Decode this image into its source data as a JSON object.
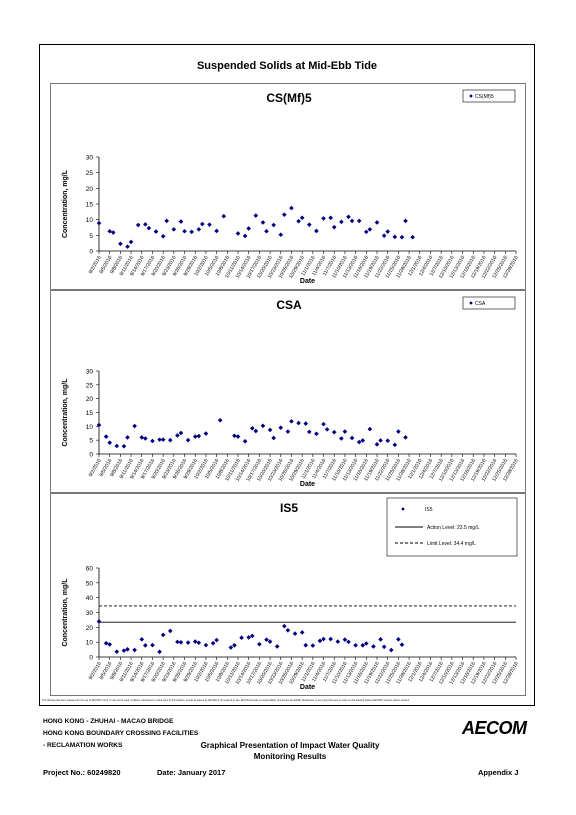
{
  "page": {
    "title": "Suspended Solids at Mid-Ebb Tide",
    "disclaimer": "This drawing has been prepared for the use of AECOM's client. It may not be used, modified, reproduced or relied upon by third parties, except as agreed by AECOM or as required by law. AECOM accepts no responsibility, and denies any liability whatsoever, to any party that uses or relies on this drawing without AECOM's express written consent.",
    "footer": {
      "line1": "HONG KONG - ZHUHAI - MACAO BRIDGE",
      "line2": "HONG KONG BOUNDARY CROSSING FACILITIES",
      "line3": "- RECLAMATION WORKS",
      "center_line1": "Graphical Presentation of Impact Water Quality",
      "center_line2": "Monitoring Results",
      "project": "Project No.: 60249820",
      "date": "Date: January 2017",
      "appendix": "Appendix J",
      "logo": "AECOM"
    }
  },
  "colors": {
    "series": "#000080",
    "action": "#000000",
    "limit": "#000000"
  },
  "chart_data": [
    {
      "type": "scatter",
      "title": "CS(Mf)5",
      "xlabel": "Date",
      "ylabel": "Concentration, mg/L",
      "ylim": [
        0,
        30
      ],
      "yticks": [
        0,
        5,
        10,
        15,
        20,
        25,
        30
      ],
      "grid": false,
      "legend_position": "top-right",
      "xticks": [
        "9/2/2016",
        "9/5/2016",
        "9/8/2016",
        "9/11/2016",
        "9/14/2016",
        "9/17/2016",
        "9/20/2016",
        "9/23/2016",
        "9/26/2016",
        "9/29/2016",
        "10/2/2016",
        "10/5/2016",
        "10/8/2016",
        "10/11/2016",
        "10/14/2016",
        "10/17/2016",
        "10/20/2016",
        "10/23/2016",
        "10/26/2016",
        "10/29/2016",
        "11/1/2016",
        "11/4/2016",
        "11/7/2016",
        "11/10/2016",
        "11/13/2016",
        "11/16/2016",
        "11/19/2016",
        "11/22/2016",
        "11/25/2016",
        "11/28/2016",
        "12/1/2016",
        "12/4/2016",
        "12/7/2016",
        "12/10/2016",
        "12/13/2016",
        "12/16/2016",
        "12/19/2016",
        "12/22/2016",
        "12/25/2016",
        "12/28/2016"
      ],
      "series": [
        {
          "name": "CS(Mf)5",
          "points": [
            [
              "2016-09-02",
              8.9
            ],
            [
              "2016-09-05",
              6.3
            ],
            [
              "2016-09-06",
              5.9
            ],
            [
              "2016-09-08",
              2.3
            ],
            [
              "2016-09-10",
              1.4
            ],
            [
              "2016-09-11",
              2.9
            ],
            [
              "2016-09-13",
              8.3
            ],
            [
              "2016-09-15",
              8.5
            ],
            [
              "2016-09-16",
              7.3
            ],
            [
              "2016-09-18",
              6.2
            ],
            [
              "2016-09-20",
              4.7
            ],
            [
              "2016-09-21",
              9.6
            ],
            [
              "2016-09-23",
              6.9
            ],
            [
              "2016-09-25",
              9.4
            ],
            [
              "2016-09-26",
              6.3
            ],
            [
              "2016-09-28",
              6.1
            ],
            [
              "2016-09-30",
              6.9
            ],
            [
              "2016-10-01",
              8.6
            ],
            [
              "2016-10-03",
              8.4
            ],
            [
              "2016-10-05",
              6.4
            ],
            [
              "2016-10-07",
              11.1
            ],
            [
              "2016-10-11",
              5.6
            ],
            [
              "2016-10-13",
              4.8
            ],
            [
              "2016-10-14",
              7.2
            ],
            [
              "2016-10-16",
              11.3
            ],
            [
              "2016-10-18",
              9.1
            ],
            [
              "2016-10-19",
              6.3
            ],
            [
              "2016-10-21",
              8.3
            ],
            [
              "2016-10-23",
              5.2
            ],
            [
              "2016-10-24",
              11.6
            ],
            [
              "2016-10-26",
              13.7
            ],
            [
              "2016-10-28",
              9.5
            ],
            [
              "2016-10-29",
              10.6
            ],
            [
              "2016-10-31",
              8.4
            ],
            [
              "2016-11-02",
              6.4
            ],
            [
              "2016-11-04",
              10.4
            ],
            [
              "2016-11-06",
              10.6
            ],
            [
              "2016-11-07",
              7.6
            ],
            [
              "2016-11-09",
              9.3
            ],
            [
              "2016-11-11",
              10.9
            ],
            [
              "2016-11-12",
              9.6
            ],
            [
              "2016-11-14",
              9.6
            ],
            [
              "2016-11-16",
              6.1
            ],
            [
              "2016-11-17",
              6.9
            ],
            [
              "2016-11-19",
              9.1
            ],
            [
              "2016-11-21",
              4.9
            ],
            [
              "2016-11-22",
              6.2
            ],
            [
              "2016-11-24",
              4.5
            ],
            [
              "2016-11-26",
              4.4
            ],
            [
              "2016-11-27",
              9.6
            ],
            [
              "2016-11-29",
              4.4
            ]
          ]
        }
      ]
    },
    {
      "type": "scatter",
      "title": "CSA",
      "xlabel": "Date",
      "ylabel": "Concentration, mg/L",
      "ylim": [
        0,
        30
      ],
      "yticks": [
        0,
        5,
        10,
        15,
        20,
        25,
        30
      ],
      "grid": false,
      "legend_position": "top-right",
      "xticks": [
        "9/2/2016",
        "9/5/2016",
        "9/8/2016",
        "9/11/2016",
        "9/14/2016",
        "9/17/2016",
        "9/20/2016",
        "9/23/2016",
        "9/26/2016",
        "9/29/2016",
        "10/2/2016",
        "10/5/2016",
        "10/8/2016",
        "10/11/2016",
        "10/14/2016",
        "10/17/2016",
        "10/20/2016",
        "10/23/2016",
        "10/26/2016",
        "10/29/2016",
        "11/1/2016",
        "11/4/2016",
        "11/7/2016",
        "11/10/2016",
        "11/13/2016",
        "11/16/2016",
        "11/19/2016",
        "11/22/2016",
        "11/25/2016",
        "11/28/2016",
        "12/1/2016",
        "12/4/2016",
        "12/7/2016",
        "12/10/2016",
        "12/13/2016",
        "12/16/2016",
        "12/19/2016",
        "12/22/2016",
        "12/25/2016",
        "12/28/2016"
      ],
      "series": [
        {
          "name": "CSA",
          "points": [
            [
              "2016-09-02",
              10.5
            ],
            [
              "2016-09-04",
              6.3
            ],
            [
              "2016-09-05",
              4.1
            ],
            [
              "2016-09-07",
              2.9
            ],
            [
              "2016-09-09",
              2.8
            ],
            [
              "2016-09-10",
              6.0
            ],
            [
              "2016-09-12",
              10.1
            ],
            [
              "2016-09-14",
              6.0
            ],
            [
              "2016-09-15",
              5.6
            ],
            [
              "2016-09-17",
              4.7
            ],
            [
              "2016-09-19",
              5.2
            ],
            [
              "2016-09-20",
              5.2
            ],
            [
              "2016-09-22",
              5.0
            ],
            [
              "2016-09-24",
              6.7
            ],
            [
              "2016-09-25",
              7.6
            ],
            [
              "2016-09-27",
              5.0
            ],
            [
              "2016-09-29",
              6.3
            ],
            [
              "2016-09-30",
              6.5
            ],
            [
              "2016-10-02",
              7.4
            ],
            [
              "2016-10-06",
              12.2
            ],
            [
              "2016-10-10",
              6.6
            ],
            [
              "2016-10-11",
              6.3
            ],
            [
              "2016-10-13",
              4.6
            ],
            [
              "2016-10-15",
              9.3
            ],
            [
              "2016-10-16",
              8.3
            ],
            [
              "2016-10-18",
              10.2
            ],
            [
              "2016-10-20",
              8.7
            ],
            [
              "2016-10-21",
              5.8
            ],
            [
              "2016-10-23",
              9.5
            ],
            [
              "2016-10-25",
              8.1
            ],
            [
              "2016-10-26",
              11.8
            ],
            [
              "2016-10-28",
              11.2
            ],
            [
              "2016-10-30",
              11.0
            ],
            [
              "2016-10-31",
              8.0
            ],
            [
              "2016-11-02",
              7.3
            ],
            [
              "2016-11-04",
              10.8
            ],
            [
              "2016-11-05",
              8.9
            ],
            [
              "2016-11-07",
              7.9
            ],
            [
              "2016-11-09",
              5.6
            ],
            [
              "2016-11-10",
              8.1
            ],
            [
              "2016-11-12",
              5.8
            ],
            [
              "2016-11-14",
              4.3
            ],
            [
              "2016-11-15",
              4.9
            ],
            [
              "2016-11-17",
              9.0
            ],
            [
              "2016-11-19",
              3.5
            ],
            [
              "2016-11-20",
              4.9
            ],
            [
              "2016-11-22",
              4.8
            ],
            [
              "2016-11-24",
              3.3
            ],
            [
              "2016-11-25",
              8.1
            ],
            [
              "2016-11-27",
              6.0
            ]
          ]
        }
      ]
    },
    {
      "type": "scatter",
      "title": "IS5",
      "xlabel": "Date",
      "ylabel": "Concentration, mg/L",
      "ylim": [
        0,
        60
      ],
      "yticks": [
        0,
        10,
        20,
        30,
        40,
        50,
        60
      ],
      "grid": false,
      "legend_position": "top-right",
      "xticks": [
        "9/2/2016",
        "9/5/2016",
        "9/8/2016",
        "9/11/2016",
        "9/14/2016",
        "9/17/2016",
        "9/20/2016",
        "9/23/2016",
        "9/26/2016",
        "9/29/2016",
        "10/2/2016",
        "10/5/2016",
        "10/8/2016",
        "10/11/2016",
        "10/14/2016",
        "10/17/2016",
        "10/20/2016",
        "10/23/2016",
        "10/26/2016",
        "10/29/2016",
        "11/1/2016",
        "11/4/2016",
        "11/7/2016",
        "11/10/2016",
        "11/13/2016",
        "11/16/2016",
        "11/19/2016",
        "11/22/2016",
        "11/25/2016",
        "11/28/2016",
        "12/1/2016",
        "12/4/2016",
        "12/7/2016",
        "12/10/2016",
        "12/13/2016",
        "12/16/2016",
        "12/19/2016",
        "12/22/2016",
        "12/25/2016",
        "12/28/2016"
      ],
      "reference_lines": [
        {
          "name": "Action Level: 23.5 mg/L",
          "value": 23.5,
          "style": "solid"
        },
        {
          "name": "Limit Level: 34.4 mg/L",
          "value": 34.4,
          "style": "dashed"
        }
      ],
      "series": [
        {
          "name": "IS5",
          "points": [
            [
              "2016-09-02",
              24.0
            ],
            [
              "2016-09-04",
              9.3
            ],
            [
              "2016-09-05",
              8.5
            ],
            [
              "2016-09-07",
              3.6
            ],
            [
              "2016-09-09",
              4.3
            ],
            [
              "2016-09-10",
              5.2
            ],
            [
              "2016-09-12",
              4.7
            ],
            [
              "2016-09-14",
              11.9
            ],
            [
              "2016-09-15",
              7.8
            ],
            [
              "2016-09-17",
              8.0
            ],
            [
              "2016-09-19",
              3.5
            ],
            [
              "2016-09-20",
              14.9
            ],
            [
              "2016-09-22",
              17.6
            ],
            [
              "2016-09-24",
              10.2
            ],
            [
              "2016-09-25",
              9.9
            ],
            [
              "2016-09-27",
              9.7
            ],
            [
              "2016-09-29",
              10.4
            ],
            [
              "2016-09-30",
              9.6
            ],
            [
              "2016-10-02",
              8.0
            ],
            [
              "2016-10-04",
              9.3
            ],
            [
              "2016-10-05",
              11.4
            ],
            [
              "2016-10-09",
              6.4
            ],
            [
              "2016-10-10",
              7.9
            ],
            [
              "2016-10-12",
              13.0
            ],
            [
              "2016-10-14",
              13.2
            ],
            [
              "2016-10-15",
              14.2
            ],
            [
              "2016-10-17",
              8.6
            ],
            [
              "2016-10-19",
              11.7
            ],
            [
              "2016-10-20",
              10.4
            ],
            [
              "2016-10-22",
              7.1
            ],
            [
              "2016-10-24",
              20.8
            ],
            [
              "2016-10-25",
              18.0
            ],
            [
              "2016-10-27",
              15.8
            ],
            [
              "2016-10-29",
              16.6
            ],
            [
              "2016-10-30",
              7.9
            ],
            [
              "2016-11-01",
              7.7
            ],
            [
              "2016-11-03",
              10.9
            ],
            [
              "2016-11-04",
              12.1
            ],
            [
              "2016-11-06",
              12.1
            ],
            [
              "2016-11-08",
              10.4
            ],
            [
              "2016-11-10",
              11.7
            ],
            [
              "2016-11-11",
              10.2
            ],
            [
              "2016-11-13",
              7.9
            ],
            [
              "2016-11-15",
              7.9
            ],
            [
              "2016-11-16",
              9.1
            ],
            [
              "2016-11-18",
              7.1
            ],
            [
              "2016-11-20",
              11.9
            ],
            [
              "2016-11-21",
              6.9
            ],
            [
              "2016-11-23",
              4.7
            ],
            [
              "2016-11-25",
              11.9
            ],
            [
              "2016-11-26",
              8.3
            ]
          ]
        }
      ]
    }
  ]
}
